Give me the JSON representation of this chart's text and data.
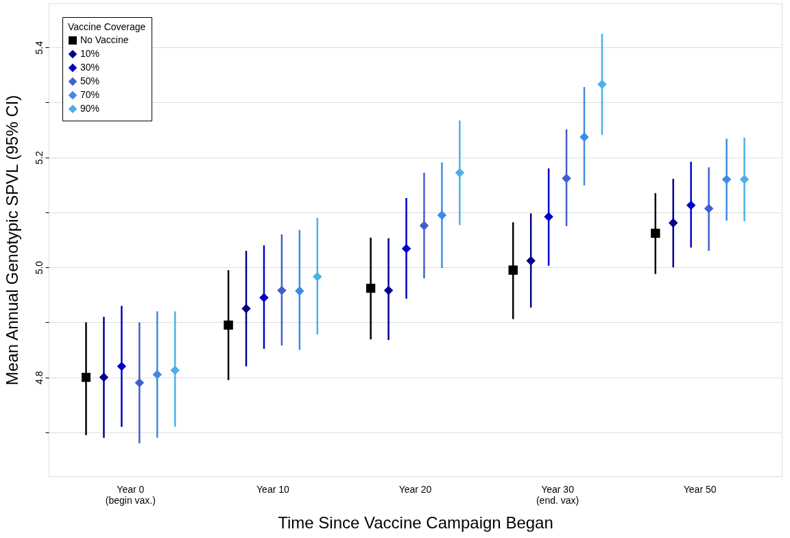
{
  "chart_data": {
    "type": "scatter",
    "xlabel": "Time Since Vaccine Campaign Began",
    "ylabel": "Mean Annual Genotypic SPVL (95% CI)",
    "legend_title": "Vaccine Coverage",
    "categories": [
      "Year 0\n(begin vax.)",
      "Year 10",
      "Year 20",
      "Year 30\n(end. vax)",
      "Year 50"
    ],
    "series": [
      {
        "name": "No Vaccine",
        "color": "#000000",
        "marker": "square",
        "values": [
          4.8,
          4.895,
          4.962,
          4.995,
          5.062
        ],
        "errors": [
          [
            4.695,
            4.9
          ],
          [
            4.795,
            4.995
          ],
          [
            4.869,
            5.054
          ],
          [
            4.906,
            5.082
          ],
          [
            4.988,
            5.135
          ]
        ]
      },
      {
        "name": "10%",
        "color": "#00008b",
        "marker": "diamond",
        "values": [
          4.8,
          4.925,
          4.958,
          5.012,
          5.081
        ],
        "errors": [
          [
            4.69,
            4.91
          ],
          [
            4.82,
            5.03
          ],
          [
            4.868,
            5.053
          ],
          [
            4.927,
            5.098
          ],
          [
            5.0,
            5.161
          ]
        ]
      },
      {
        "name": "30%",
        "color": "#0000cd",
        "marker": "diamond",
        "values": [
          4.82,
          4.945,
          5.034,
          5.092,
          5.113
        ],
        "errors": [
          [
            4.71,
            4.93
          ],
          [
            4.852,
            5.04
          ],
          [
            4.943,
            5.126
          ],
          [
            5.003,
            5.18
          ],
          [
            5.036,
            5.192
          ]
        ]
      },
      {
        "name": "50%",
        "color": "#4160cf",
        "marker": "diamond",
        "values": [
          4.79,
          4.958,
          5.076,
          5.162,
          5.107
        ],
        "errors": [
          [
            4.68,
            4.9
          ],
          [
            4.858,
            5.06
          ],
          [
            4.98,
            5.172
          ],
          [
            5.075,
            5.251
          ],
          [
            5.03,
            5.182
          ]
        ]
      },
      {
        "name": "70%",
        "color": "#3f8ae6",
        "marker": "diamond",
        "values": [
          4.805,
          4.957,
          5.095,
          5.237,
          5.16
        ],
        "errors": [
          [
            4.69,
            4.92
          ],
          [
            4.85,
            5.068
          ],
          [
            4.999,
            5.191
          ],
          [
            5.149,
            5.328
          ],
          [
            5.085,
            5.234
          ]
        ]
      },
      {
        "name": "90%",
        "color": "#4cb0e8",
        "marker": "diamond",
        "values": [
          4.813,
          4.983,
          5.172,
          5.333,
          5.16
        ],
        "errors": [
          [
            4.71,
            4.92
          ],
          [
            4.878,
            5.09
          ],
          [
            5.077,
            5.267
          ],
          [
            5.241,
            5.425
          ],
          [
            5.084,
            5.236
          ]
        ]
      }
    ],
    "ylim": [
      4.62,
      5.48
    ],
    "yticks": [
      {
        "value": 4.7,
        "label": null
      },
      4.8,
      {
        "value": 4.9,
        "label": null
      },
      {
        "value": 5,
        "label": "5.0"
      },
      {
        "value": 5.1,
        "label": null
      },
      5.2,
      {
        "value": 5.3,
        "label": null
      },
      5.4
    ],
    "grid": "y",
    "legend": "top left"
  }
}
